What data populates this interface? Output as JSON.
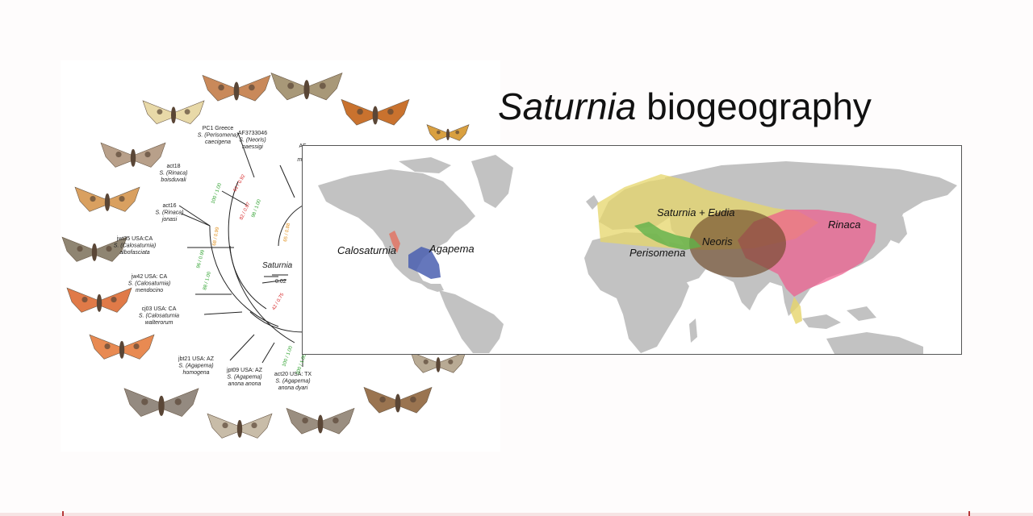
{
  "slide": {
    "title_italic": "Saturnia",
    "title_rest": " biogeography"
  },
  "tree": {
    "scale_label": "0.02",
    "root_label": "Saturnia",
    "taxa": [
      {
        "code": "PC1 Greece",
        "subgenus": "S. (Perisomena)",
        "species": "caecigena"
      },
      {
        "code": "AF3733046",
        "subgenus": "S. (Neoris)",
        "species": "naessigi"
      },
      {
        "code": "AF",
        "subgenus": "",
        "species": "mult"
      },
      {
        "code": "act18",
        "subgenus": "S. (Rinaca)",
        "species": "boisduvali"
      },
      {
        "code": "act16",
        "subgenus": "S. (Rinaca)",
        "species": "jonasi"
      },
      {
        "code": "jwt35 USA:CA",
        "subgenus": "S. (Calosaturnia)",
        "species": "albofasciata"
      },
      {
        "code": "jw42 USA: CA",
        "subgenus": "S. (Calosaturnia)",
        "species": "mendocino"
      },
      {
        "code": "cj03 USA: CA",
        "subgenus": "S. (Calosaturnia",
        "species": "walterorum"
      },
      {
        "code": "jbt21 USA: AZ",
        "subgenus": "S. (Agapema)",
        "species": "homogena"
      },
      {
        "code": "jpt09 USA: AZ",
        "subgenus": "S. (Agapema)",
        "species": "anona anona"
      },
      {
        "code": "act20 USA: TX",
        "subgenus": "S. (Agapema)",
        "species": "anona dyari"
      }
    ],
    "support_labels": [
      {
        "text": "100 / 1.00",
        "color": "#2ca02c"
      },
      {
        "text": "98 / 1.00",
        "color": "#2ca02c"
      },
      {
        "text": "96 / 0.99",
        "color": "#2ca02c"
      },
      {
        "text": "88 / 1.00",
        "color": "#2ca02c"
      },
      {
        "text": "100 / 1.00",
        "color": "#2ca02c"
      },
      {
        "text": "100 / 1.00",
        "color": "#2ca02c"
      },
      {
        "text": "61 / 0.92",
        "color": "#d62728"
      },
      {
        "text": "82 / 0.87",
        "color": "#d62728"
      },
      {
        "text": "42 / 0.75",
        "color": "#d62728"
      },
      {
        "text": "68 / 0.99",
        "color": "#e08a10"
      },
      {
        "text": "65 / 0.88",
        "color": "#e08a10"
      }
    ]
  },
  "map": {
    "ranges": [
      {
        "label": "Calosaturnia",
        "color": "#e07a6a"
      },
      {
        "label": "Agapema",
        "color": "#4a5fb0"
      },
      {
        "label": "Saturnia + Eudia",
        "color": "#e6d56a"
      },
      {
        "label": "Perisomena",
        "color": "#5fb04a"
      },
      {
        "label": "Neoris",
        "color": "#6e4a2a"
      },
      {
        "label": "Rinaca",
        "color": "#ee5a8c"
      }
    ]
  },
  "moth_icons": [
    "moth-icon"
  ]
}
